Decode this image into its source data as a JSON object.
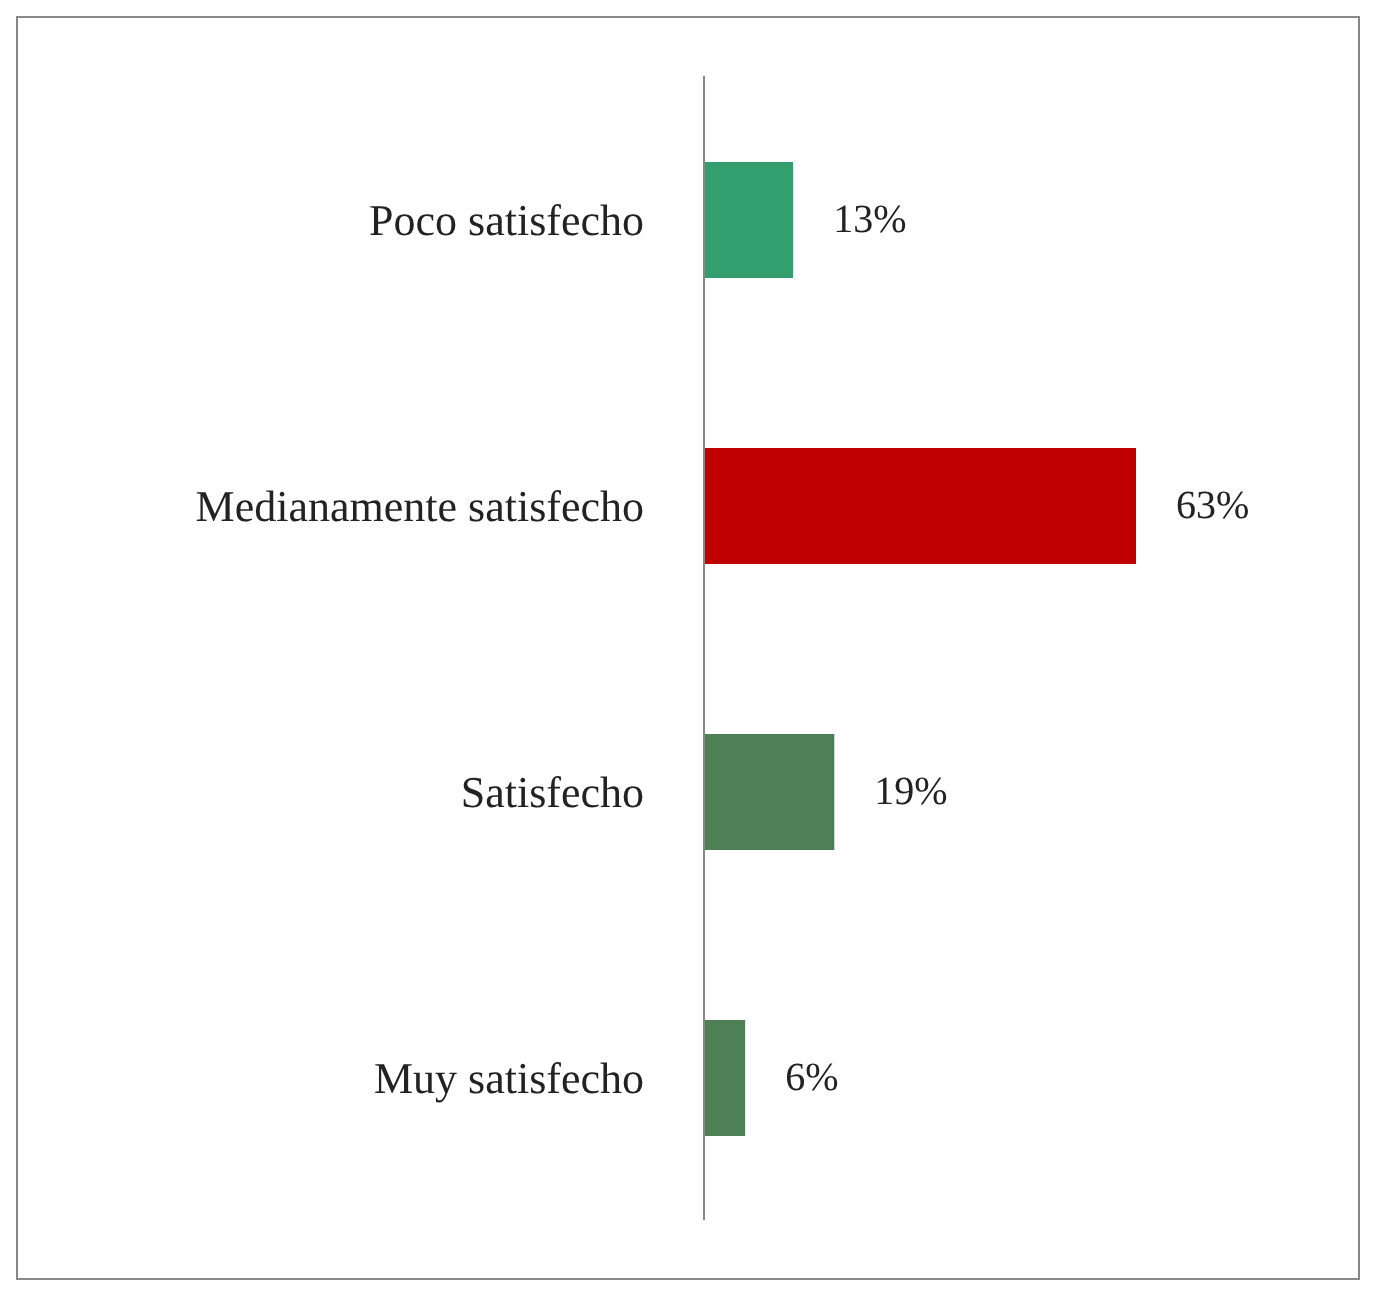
{
  "chart_data": {
    "type": "bar",
    "orientation": "horizontal",
    "categories": [
      "Poco satisfecho",
      "Medianamente satisfecho",
      "Satisfecho",
      "Muy satisfecho"
    ],
    "values": [
      13,
      63,
      19,
      6
    ],
    "colors": [
      "#339e6e",
      "#c00000",
      "#4e7f55",
      "#4e7f55"
    ],
    "value_labels": [
      "13%",
      "63%",
      "19%",
      "6%"
    ],
    "grid": false,
    "legend": false
  }
}
